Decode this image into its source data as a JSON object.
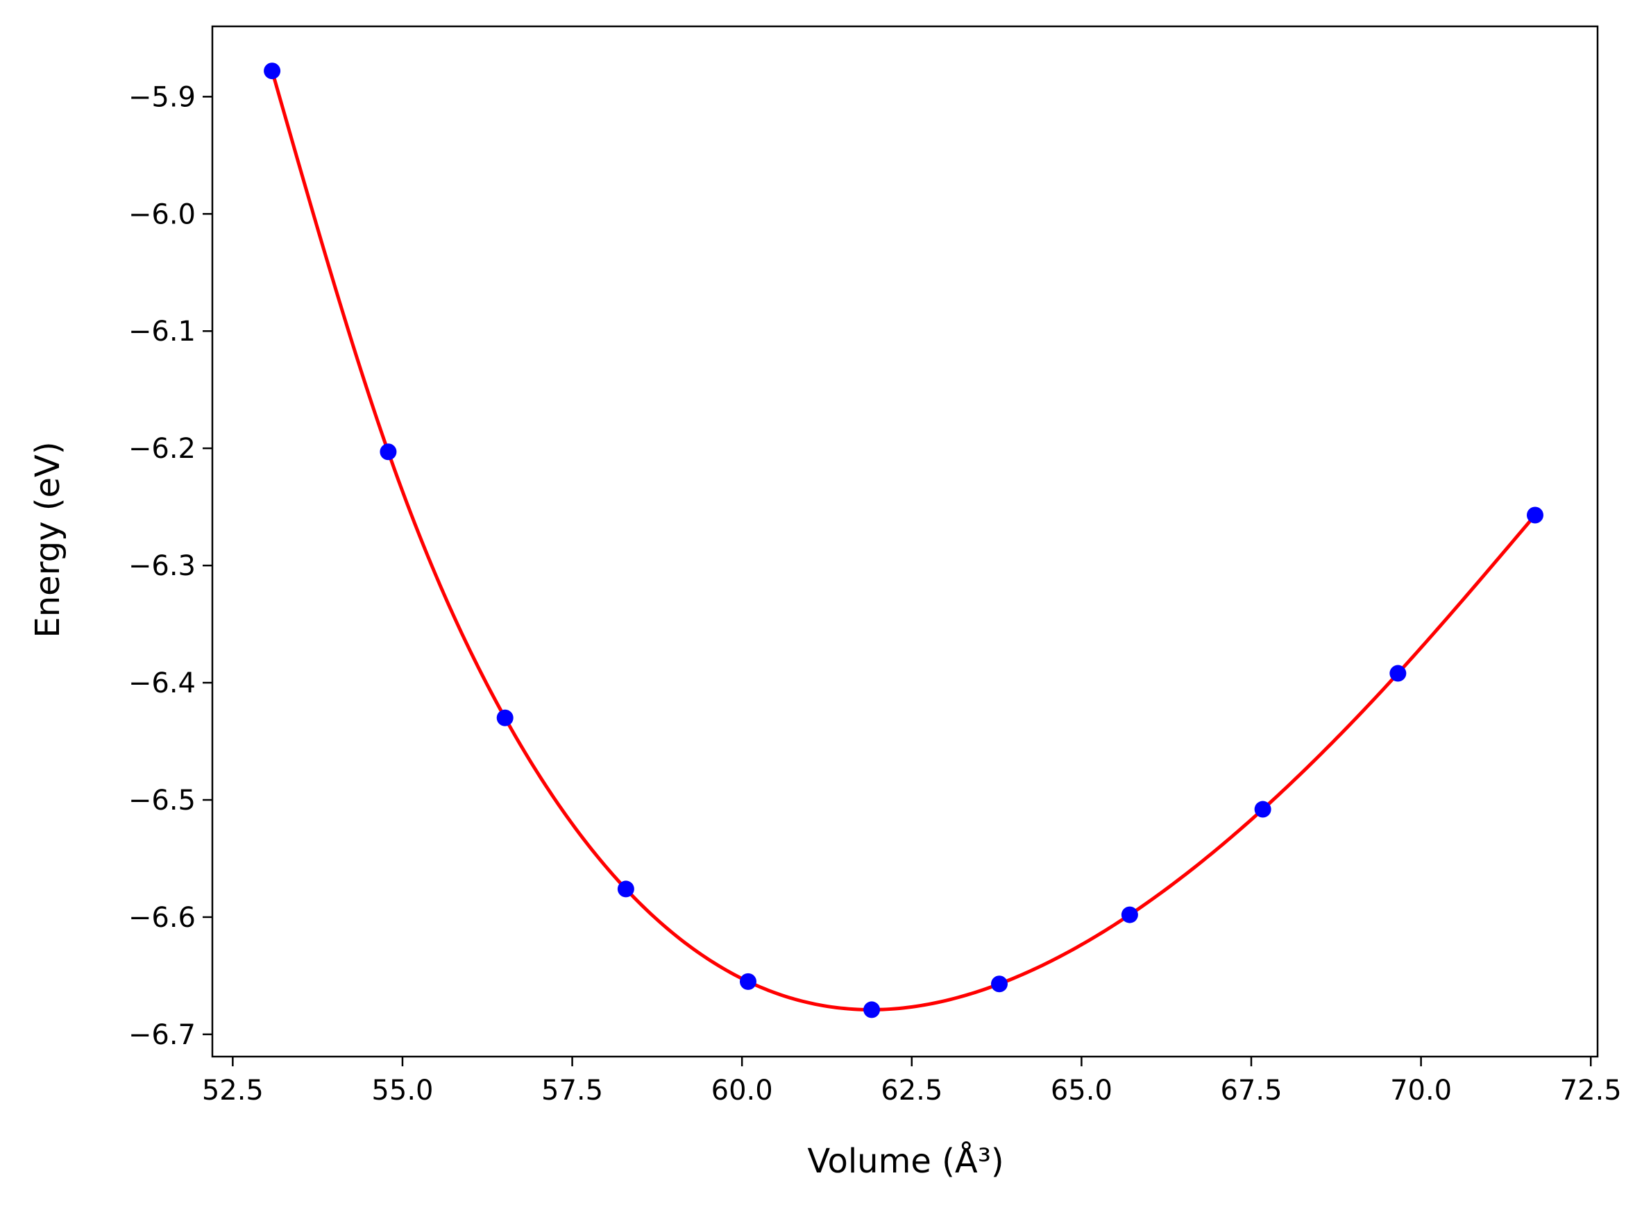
{
  "chart_data": {
    "type": "line",
    "title": "",
    "xlabel": "Volume (Å³)",
    "ylabel": "Energy (eV)",
    "xlim": [
      52.2,
      72.6
    ],
    "ylim": [
      -6.719,
      -5.84
    ],
    "x_ticks": [
      52.5,
      55.0,
      57.5,
      60.0,
      62.5,
      65.0,
      67.5,
      70.0,
      72.5
    ],
    "x_tick_labels": [
      "52.5",
      "55.0",
      "57.5",
      "60.0",
      "62.5",
      "65.0",
      "67.5",
      "70.0",
      "72.5"
    ],
    "y_ticks": [
      -5.9,
      -6.0,
      -6.1,
      -6.2,
      -6.3,
      -6.4,
      -6.5,
      -6.6,
      -6.7
    ],
    "y_tick_labels": [
      "−5.9",
      "−6.0",
      "−6.1",
      "−6.2",
      "−6.3",
      "−6.4",
      "−6.5",
      "−6.6",
      "−6.7"
    ],
    "grid": false,
    "series": [
      {
        "kind": "scatter",
        "color": "#0000ff",
        "x": [
          53.08,
          54.79,
          56.51,
          58.29,
          60.09,
          61.91,
          63.79,
          65.71,
          67.67,
          69.66,
          71.68
        ],
        "y": [
          -5.878,
          -6.203,
          -6.43,
          -6.576,
          -6.655,
          -6.679,
          -6.657,
          -6.598,
          -6.508,
          -6.392,
          -6.257
        ]
      },
      {
        "kind": "line",
        "color": "#ff0000",
        "fit": "cubic-spline through points",
        "x": [
          53.08,
          54.79,
          56.51,
          58.29,
          60.09,
          61.91,
          63.79,
          65.71,
          67.67,
          69.66,
          71.68
        ],
        "y": [
          -5.878,
          -6.203,
          -6.43,
          -6.576,
          -6.655,
          -6.679,
          -6.657,
          -6.598,
          -6.508,
          -6.392,
          -6.257
        ]
      }
    ]
  }
}
